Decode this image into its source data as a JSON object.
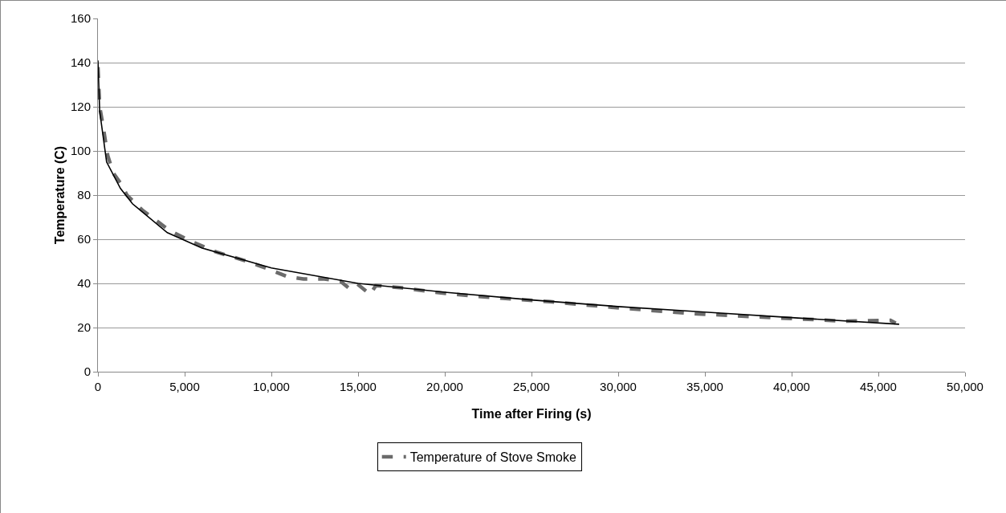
{
  "chart_data": {
    "type": "line",
    "xlabel": "Time after Firing (s)",
    "ylabel": "Temperature (C)",
    "xlim": [
      0,
      50000
    ],
    "ylim": [
      0,
      160
    ],
    "xticks": [
      {
        "value": 0,
        "label": "0"
      },
      {
        "value": 5000,
        "label": "5,000"
      },
      {
        "value": 10000,
        "label": "10,000"
      },
      {
        "value": 15000,
        "label": "15,000"
      },
      {
        "value": 20000,
        "label": "20,000"
      },
      {
        "value": 25000,
        "label": "25,000"
      },
      {
        "value": 30000,
        "label": "30,000"
      },
      {
        "value": 35000,
        "label": "35,000"
      },
      {
        "value": 40000,
        "label": "40,000"
      },
      {
        "value": 45000,
        "label": "45,000"
      },
      {
        "value": 50000,
        "label": "50,000"
      }
    ],
    "yticks": [
      0,
      20,
      40,
      60,
      80,
      100,
      120,
      140,
      160
    ],
    "grid": "y",
    "legend": "bottom",
    "marker": "none",
    "series": [
      {
        "name": "Temperature of Stove Smoke",
        "color": "#6b6b6b",
        "line_style": "dashed",
        "x": [
          0,
          100,
          280,
          560,
          880,
          1340,
          1670,
          2590,
          4120,
          5370,
          6900,
          8610,
          10000,
          10930,
          11850,
          13060,
          13980,
          14450,
          14910,
          15700,
          16020,
          17550,
          19400,
          21800,
          26070,
          30330,
          34590,
          38880,
          43150,
          45700,
          46000
        ],
        "values": [
          138,
          120,
          112,
          98,
          90,
          85,
          80,
          73,
          64,
          59,
          54,
          50,
          46,
          43,
          42,
          42,
          41,
          38,
          40,
          35,
          39,
          38,
          36,
          34.2,
          31.7,
          28.7,
          26.2,
          24.5,
          22.9,
          23.3,
          22
        ]
      },
      {
        "type": "line",
        "color": "#000000",
        "line_style": "solid",
        "x": [
          0,
          100,
          500,
          1300,
          2000,
          4000,
          6000,
          10000,
          15000,
          20000,
          25000,
          30000,
          35000,
          40000,
          46200
        ],
        "values": [
          141,
          118,
          95,
          83,
          76,
          63,
          56,
          47,
          40,
          36,
          32.5,
          29.5,
          27,
          24.5,
          21.5
        ]
      }
    ]
  }
}
